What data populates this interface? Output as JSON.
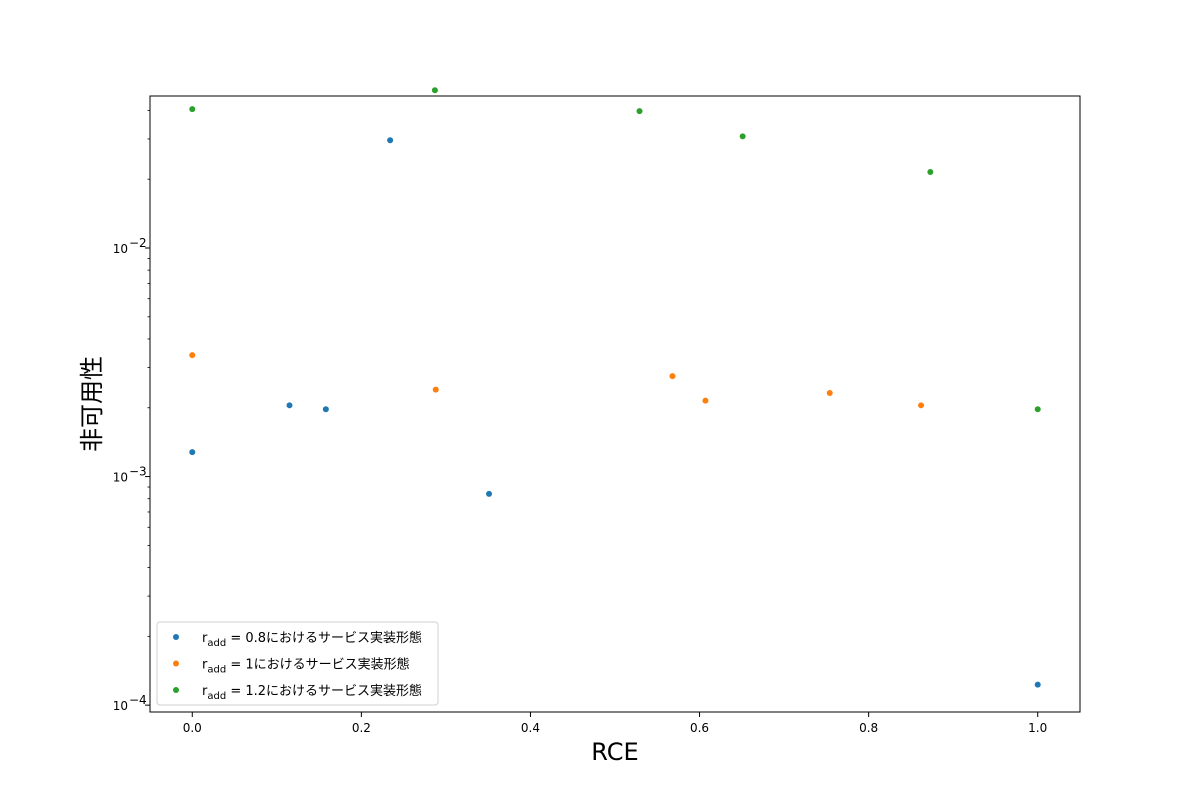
{
  "chart_data": {
    "type": "scatter",
    "title": "",
    "xlabel": "RCE",
    "ylabel": "非可用性",
    "xlim": [
      -0.05,
      1.05
    ],
    "ylim_log10": [
      -4.03,
      -1.335
    ],
    "yscale": "log",
    "grid": false,
    "legend_position": "lower-left",
    "x_ticks": [
      {
        "value": 0.0,
        "label": "0.0"
      },
      {
        "value": 0.2,
        "label": "0.2"
      },
      {
        "value": 0.4,
        "label": "0.4"
      },
      {
        "value": 0.6,
        "label": "0.6"
      },
      {
        "value": 0.8,
        "label": "0.8"
      },
      {
        "value": 1.0,
        "label": "1.0"
      }
    ],
    "y_ticks": [
      {
        "exp": -2,
        "base": "10",
        "power": "−2"
      },
      {
        "exp": -3,
        "base": "10",
        "power": "−3"
      },
      {
        "exp": -4,
        "base": "10",
        "power": "−4"
      }
    ],
    "series": [
      {
        "name_main": "r",
        "name_sub": "add",
        "name_rest": " = 0.8におけるサービス実装形態",
        "color": "#1f77b4",
        "points": [
          {
            "x": 0.0,
            "y": 0.00128
          },
          {
            "x": 0.115,
            "y": 0.00205
          },
          {
            "x": 0.158,
            "y": 0.00197
          },
          {
            "x": 0.234,
            "y": 0.0296
          },
          {
            "x": 0.351,
            "y": 0.00084
          },
          {
            "x": 1.0,
            "y": 0.000123
          }
        ]
      },
      {
        "name_main": "r",
        "name_sub": "add",
        "name_rest": " = 1におけるサービス実装形態",
        "color": "#ff7f0e",
        "points": [
          {
            "x": 0.0,
            "y": 0.0034
          },
          {
            "x": 0.288,
            "y": 0.0024
          },
          {
            "x": 0.568,
            "y": 0.00275
          },
          {
            "x": 0.607,
            "y": 0.00215
          },
          {
            "x": 0.754,
            "y": 0.00232
          },
          {
            "x": 0.862,
            "y": 0.00205
          }
        ]
      },
      {
        "name_main": "r",
        "name_sub": "add",
        "name_rest": " = 1.2におけるサービス実装形態",
        "color": "#2ca02c",
        "points": [
          {
            "x": 0.0,
            "y": 0.0405
          },
          {
            "x": 0.287,
            "y": 0.049
          },
          {
            "x": 0.529,
            "y": 0.0397
          },
          {
            "x": 0.651,
            "y": 0.0308
          },
          {
            "x": 0.873,
            "y": 0.0215
          },
          {
            "x": 1.0,
            "y": 0.00197
          }
        ]
      }
    ]
  }
}
